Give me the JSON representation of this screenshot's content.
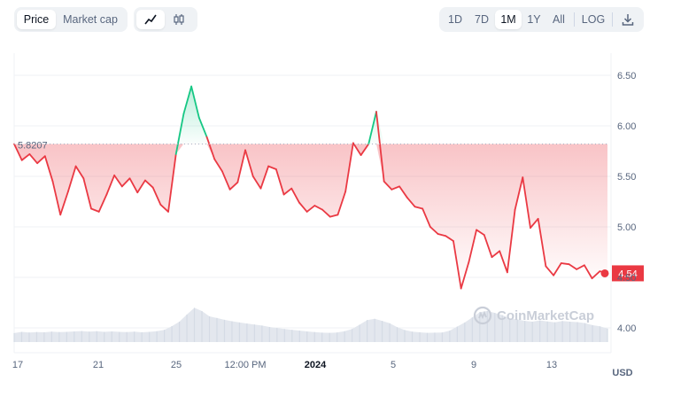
{
  "toolbar": {
    "left_tabs": [
      "Price",
      "Market cap"
    ],
    "active_left_tab": "Price",
    "chart_type_icons": [
      "line-chart-icon",
      "candlestick-icon"
    ],
    "ranges": [
      "1D",
      "7D",
      "1M",
      "1Y",
      "All"
    ],
    "active_range": "1M",
    "log_label": "LOG",
    "download_icon": "download-icon"
  },
  "watermark": "CoinMarketCap",
  "colors": {
    "up": "#16c784",
    "down": "#ea3943",
    "volume": "#cfd6e4",
    "grid": "#eff2f5"
  },
  "chart_data": {
    "type": "line",
    "x_tick_labels": [
      "17",
      "21",
      "25",
      "12:00 PM",
      "2024",
      "5",
      "9",
      "13"
    ],
    "y_ticks": [
      4.0,
      4.5,
      5.0,
      5.5,
      6.0,
      6.5
    ],
    "y_tick_labels": [
      "4.00",
      "4.50",
      "5.00",
      "5.50",
      "6.00",
      "6.50"
    ],
    "ylim": [
      3.85,
      6.6
    ],
    "reference_value": 5.8207,
    "reference_label": "5.8207",
    "current_value": 4.54,
    "current_label": "4.54",
    "currency_label": "USD",
    "price_series": [
      [
        0,
        5.82
      ],
      [
        0.5,
        5.66
      ],
      [
        1,
        5.72
      ],
      [
        1.5,
        5.63
      ],
      [
        2,
        5.7
      ],
      [
        2.5,
        5.45
      ],
      [
        3,
        5.12
      ],
      [
        3.5,
        5.35
      ],
      [
        4,
        5.6
      ],
      [
        4.5,
        5.48
      ],
      [
        5,
        5.18
      ],
      [
        5.5,
        5.15
      ],
      [
        6,
        5.32
      ],
      [
        6.5,
        5.51
      ],
      [
        7,
        5.4
      ],
      [
        7.5,
        5.48
      ],
      [
        8,
        5.34
      ],
      [
        8.5,
        5.46
      ],
      [
        9,
        5.39
      ],
      [
        9.5,
        5.22
      ],
      [
        10,
        5.15
      ],
      [
        10.5,
        5.72
      ],
      [
        11,
        6.12
      ],
      [
        11.5,
        6.39
      ],
      [
        12,
        6.08
      ],
      [
        12.5,
        5.89
      ],
      [
        13,
        5.67
      ],
      [
        13.5,
        5.55
      ],
      [
        14,
        5.37
      ],
      [
        14.5,
        5.44
      ],
      [
        15,
        5.76
      ],
      [
        15.5,
        5.5
      ],
      [
        16,
        5.38
      ],
      [
        16.5,
        5.6
      ],
      [
        17,
        5.57
      ],
      [
        17.5,
        5.32
      ],
      [
        18,
        5.38
      ],
      [
        18.5,
        5.24
      ],
      [
        19,
        5.15
      ],
      [
        19.5,
        5.21
      ],
      [
        20,
        5.17
      ],
      [
        20.5,
        5.1
      ],
      [
        21,
        5.12
      ],
      [
        21.5,
        5.35
      ],
      [
        22,
        5.83
      ],
      [
        22.5,
        5.71
      ],
      [
        23,
        5.82
      ],
      [
        23.5,
        6.14
      ],
      [
        24,
        5.45
      ],
      [
        24.5,
        5.37
      ],
      [
        25,
        5.4
      ],
      [
        25.5,
        5.29
      ],
      [
        26,
        5.2
      ],
      [
        26.5,
        5.18
      ],
      [
        27,
        5.0
      ],
      [
        27.5,
        4.93
      ],
      [
        28,
        4.91
      ],
      [
        28.5,
        4.86
      ],
      [
        29,
        4.39
      ],
      [
        29.5,
        4.65
      ],
      [
        30,
        4.97
      ],
      [
        30.5,
        4.92
      ],
      [
        31,
        4.7
      ],
      [
        31.5,
        4.76
      ],
      [
        32,
        4.55
      ],
      [
        32.5,
        5.17
      ],
      [
        33,
        5.49
      ],
      [
        33.5,
        4.99
      ],
      [
        34,
        5.08
      ],
      [
        34.5,
        4.61
      ],
      [
        35,
        4.52
      ],
      [
        35.5,
        4.64
      ],
      [
        36,
        4.63
      ],
      [
        36.5,
        4.58
      ],
      [
        37,
        4.62
      ],
      [
        37.5,
        4.49
      ],
      [
        38,
        4.56
      ],
      [
        38.5,
        4.54
      ]
    ],
    "volume_series": [
      4.4,
      5.0,
      4.7,
      4.9,
      4.8,
      5.1,
      4.9,
      5.0,
      5.2,
      5.4,
      5.1,
      5.3,
      5.0,
      5.2,
      5.0,
      4.9,
      5.1,
      4.8,
      5.0,
      5.3,
      6.0,
      7.8,
      10.0,
      13.5,
      16.8,
      15.2,
      12.6,
      11.8,
      10.9,
      10.2,
      9.6,
      9.1,
      8.6,
      8.1,
      7.4,
      6.9,
      6.4,
      6.0,
      5.6,
      5.2,
      4.9,
      4.6,
      4.5,
      4.7,
      5.3,
      6.4,
      8.5,
      10.8,
      11.4,
      10.4,
      9.2,
      7.3,
      5.9,
      5.1,
      4.8,
      4.5,
      4.6,
      4.7,
      5.6,
      7.6,
      9.6,
      12.1,
      14.7,
      15.2,
      14.3,
      13.2,
      11.6,
      11.1,
      10.4,
      10.0,
      10.6,
      10.1,
      9.7,
      10.3,
      10.0,
      9.8,
      9.3,
      8.3,
      7.7,
      6.6
    ]
  }
}
